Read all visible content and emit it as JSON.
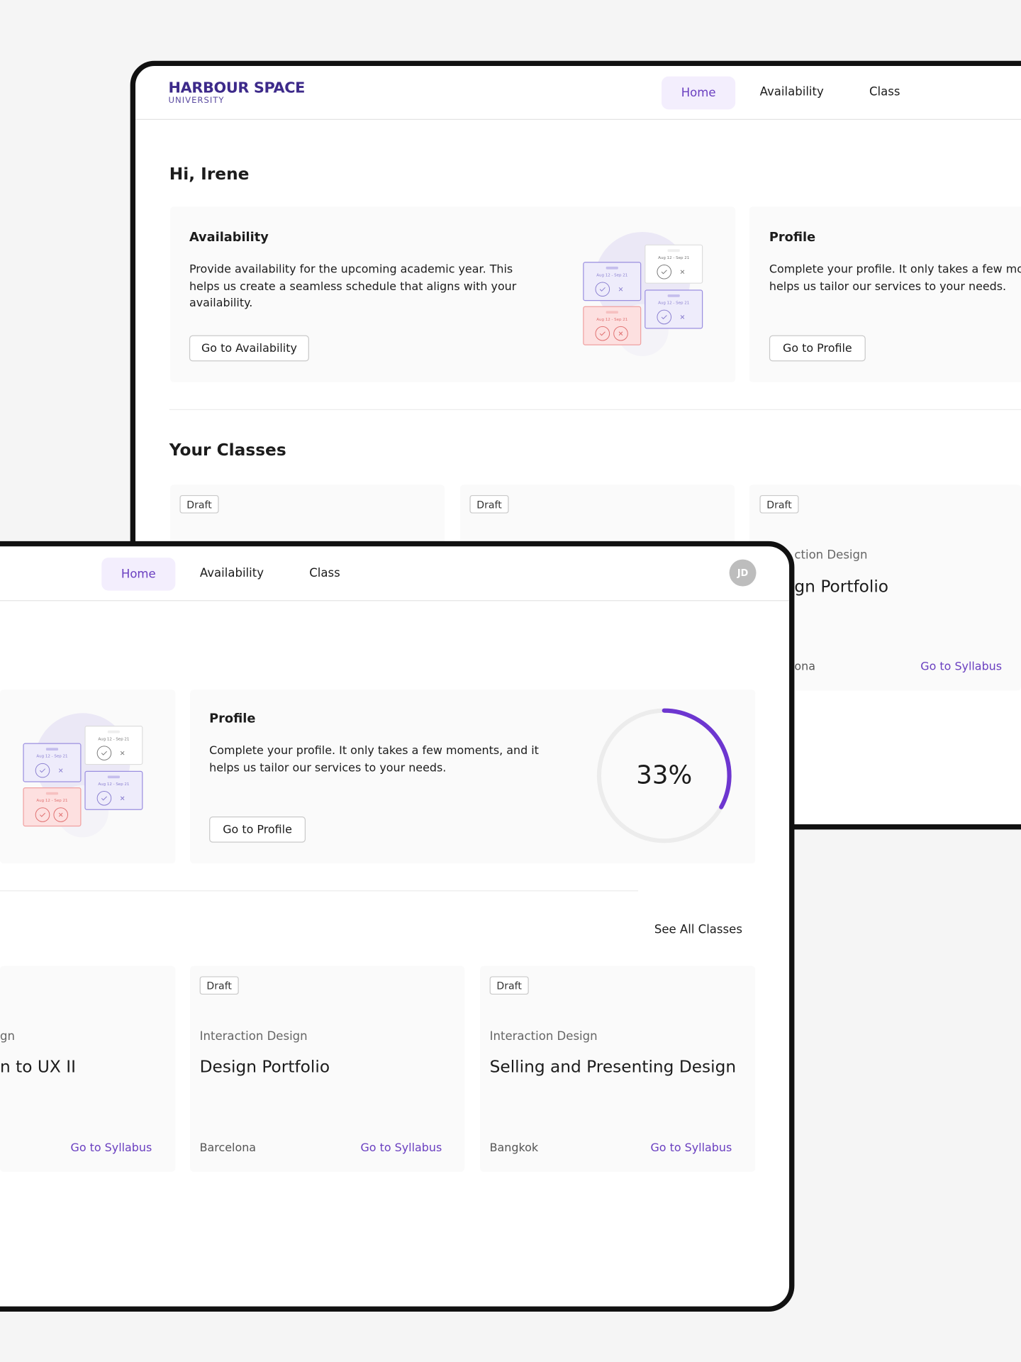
{
  "brand": {
    "name": "HARBOUR SPACE",
    "tagline": "UNIVERSITY"
  },
  "nav": [
    "Home",
    "Availability",
    "Class"
  ],
  "avatar": "JD",
  "greeting": "Hi, Irene",
  "availability_card": {
    "title": "Availability",
    "text": "Provide availability for the upcoming academic year. This helps us create a seamless schedule that aligns with your availability.",
    "button": "Go to Availability"
  },
  "profile_card": {
    "title": "Profile",
    "text": "Complete your profile. It only takes a few moments, and it helps us tailor our services to your needs.",
    "button": "Go to Profile",
    "progress": {
      "value": 33,
      "label": "33%"
    }
  },
  "illustration_date": "Aug 12 - Sep 21",
  "classes_heading": "Your Classes",
  "see_all": "See All Classes",
  "back_class_cards": [
    {
      "status": "Draft"
    },
    {
      "status": "Draft"
    },
    {
      "status": "Draft",
      "subject": "ction Design",
      "title": "gn Portfolio",
      "location": "ona",
      "link": "Go to Syllabus"
    }
  ],
  "class_cards": [
    {
      "subject": "gn",
      "title": "n to UX II",
      "link": "Go to Syllabus"
    },
    {
      "status": "Draft",
      "subject": "Interaction Design",
      "title": "Design Portfolio",
      "location": "Barcelona",
      "link": "Go to Syllabus"
    },
    {
      "status": "Draft",
      "subject": "Interaction Design",
      "title": "Selling and Presenting Design",
      "location": "Bangkok",
      "link": "Go to Syllabus"
    }
  ]
}
